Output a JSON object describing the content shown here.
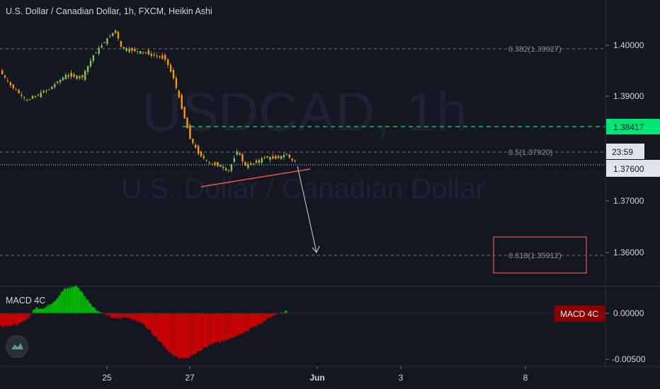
{
  "header": {
    "title": "U.S. Dollar / Canadian Dollar, 1h, FXCM, Heikin Ashi"
  },
  "watermark": {
    "symbol": "USDCAD, 1h",
    "description": "U.S. Dollar / Canadian Dollar"
  },
  "colors": {
    "background": "#131722",
    "up": "#26a69a",
    "down": "#ef5350",
    "candle_up": "#8bc34a",
    "candle_down": "#ff9800",
    "target_line": "#00e676",
    "macd_up": "#00c000",
    "macd_down": "#d50000"
  },
  "price_axis": {
    "ticks": [
      "1.40000",
      "1.39000",
      "1.37000",
      "1.36000"
    ],
    "target_label": "1.38417",
    "timer_label": "23:59",
    "current_label": "1.37600"
  },
  "time_axis": {
    "ticks": [
      "25",
      "27",
      "Jun",
      "3",
      "8"
    ]
  },
  "fibonacci": [
    {
      "label": "0.382(1.39927)",
      "value": 1.39927
    },
    {
      "label": "0.5(1.37920)",
      "value": 1.3792
    },
    {
      "label": "0.618(1.35912)",
      "value": 1.35912
    }
  ],
  "macd": {
    "title": "MACD 4C",
    "badge": "MACD 4C",
    "ticks": [
      "0.00000",
      "-0.00500"
    ]
  },
  "chart_data": [
    {
      "type": "candlestick",
      "title": "U.S. Dollar / Canadian Dollar, 1h, FXCM, Heikin Ashi",
      "ylim": [
        1.3525,
        1.4095
      ],
      "x_ticks": [
        "25",
        "27",
        "Jun",
        "3",
        "8"
      ],
      "y_ticks": [
        1.4,
        1.39,
        1.37,
        1.36
      ],
      "path_points": [
        [
          0,
          1.3955
        ],
        [
          4,
          1.3925
        ],
        [
          10,
          1.3895
        ],
        [
          18,
          1.3918
        ],
        [
          24,
          1.3945
        ],
        [
          30,
          1.3942
        ],
        [
          34,
          1.3985
        ],
        [
          38,
          1.4012
        ],
        [
          42,
          1.4035
        ],
        [
          44,
          1.4
        ],
        [
          48,
          1.3995
        ],
        [
          53,
          1.399
        ],
        [
          60,
          1.3978
        ],
        [
          63,
          1.394
        ],
        [
          66,
          1.388
        ],
        [
          69,
          1.382
        ],
        [
          72,
          1.379
        ],
        [
          76,
          1.377
        ],
        [
          80,
          1.3765
        ],
        [
          83,
          1.3755
        ],
        [
          86,
          1.3795
        ],
        [
          89,
          1.3765
        ],
        [
          92,
          1.377
        ],
        [
          96,
          1.3782
        ],
        [
          100,
          1.378
        ],
        [
          104,
          1.3788
        ],
        [
          106,
          1.3775
        ]
      ],
      "levels": {
        "target": 1.38417,
        "current": 1.376,
        "fib_0382": 1.39927,
        "fib_05": 1.3792,
        "fib_0618": 1.35912
      },
      "annotations": [
        "support trendline",
        "projected move arrow to 1.3590",
        "target box 0.618(1.35912)"
      ]
    },
    {
      "type": "bar",
      "title": "MACD 4C",
      "ylim": [
        -0.0052,
        0.003
      ],
      "y_ticks": [
        0.0,
        -0.005
      ],
      "profile": [
        [
          0,
          -0.0014
        ],
        [
          6,
          -0.0012
        ],
        [
          9,
          -0.0004
        ],
        [
          11,
          0.0006
        ],
        [
          14,
          0.0006
        ],
        [
          17,
          0.0014
        ],
        [
          20,
          0.0026
        ],
        [
          24,
          0.003
        ],
        [
          27,
          0.0016
        ],
        [
          30,
          0.0004
        ],
        [
          33,
          -0.0002
        ],
        [
          36,
          -0.0006
        ],
        [
          40,
          -0.0004
        ],
        [
          45,
          -0.0012
        ],
        [
          50,
          -0.003
        ],
        [
          54,
          -0.0046
        ],
        [
          58,
          -0.005
        ],
        [
          62,
          -0.0042
        ],
        [
          66,
          -0.0034
        ],
        [
          70,
          -0.003
        ],
        [
          74,
          -0.0024
        ],
        [
          78,
          -0.0018
        ],
        [
          82,
          -0.001
        ],
        [
          85,
          -0.0004
        ],
        [
          88,
          0.0
        ],
        [
          90,
          0.0002
        ]
      ]
    }
  ]
}
